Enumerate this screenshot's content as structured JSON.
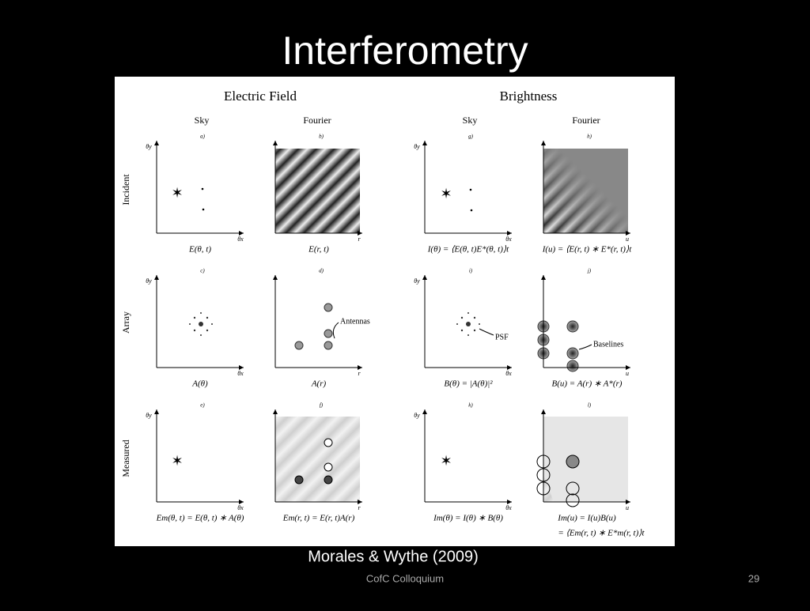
{
  "slide": {
    "title": "Interferometry",
    "caption": "Morales & Wythe (2009)",
    "footer": "CofC Colloquium",
    "page_number": "29"
  },
  "figure": {
    "group_titles": [
      "Electric Field",
      "Brightness"
    ],
    "column_headers": [
      "Sky",
      "Fourier",
      "Sky",
      "Fourier"
    ],
    "row_labels": [
      "Incident",
      "Array",
      "Measured"
    ],
    "panels": [
      {
        "letter": "a)",
        "y_label": "θy",
        "x_label": "θx",
        "formula": "E(θ, t)"
      },
      {
        "letter": "b)",
        "x_label": "r",
        "formula": "E(r, t)"
      },
      {
        "letter": "g)",
        "y_label": "θy",
        "x_label": "θx",
        "formula": "I(θ) = ⟨E(θ, t)E*(θ, t)⟩t"
      },
      {
        "letter": "h)",
        "x_label": "u",
        "formula": "I(u) = ⟨E(r, t) ∗ E*(r, t)⟩t"
      },
      {
        "letter": "c)",
        "y_label": "θy",
        "x_label": "θx",
        "formula": "A(θ)"
      },
      {
        "letter": "d)",
        "x_label": "r",
        "formula": "A(r)"
      },
      {
        "letter": "i)",
        "y_label": "θy",
        "x_label": "θx",
        "formula": "B(θ) = |A(θ)|²"
      },
      {
        "letter": "j)",
        "x_label": "u",
        "formula": "B(u) = A(r) ∗ A*(r)"
      },
      {
        "letter": "e)",
        "y_label": "θy",
        "x_label": "θx",
        "formula": "Em(θ, t) = E(θ, t) ∗ A(θ)"
      },
      {
        "letter": "f)",
        "x_label": "r",
        "formula": "Em(r, t) = E(r, t)A(r)"
      },
      {
        "letter": "k)",
        "y_label": "θy",
        "x_label": "θx",
        "formula": "Im(θ) = I(θ) ∗ B(θ)"
      },
      {
        "letter": "l)",
        "x_label": "u",
        "formula": "Im(u) = I(u)B(u)"
      }
    ],
    "extra_formula": "= ⟨Em(r, t) ∗ E*m(r, t)⟩t",
    "annotations": {
      "antennas": "Antennas",
      "psf": "PSF",
      "baselines": "Baselines"
    }
  }
}
